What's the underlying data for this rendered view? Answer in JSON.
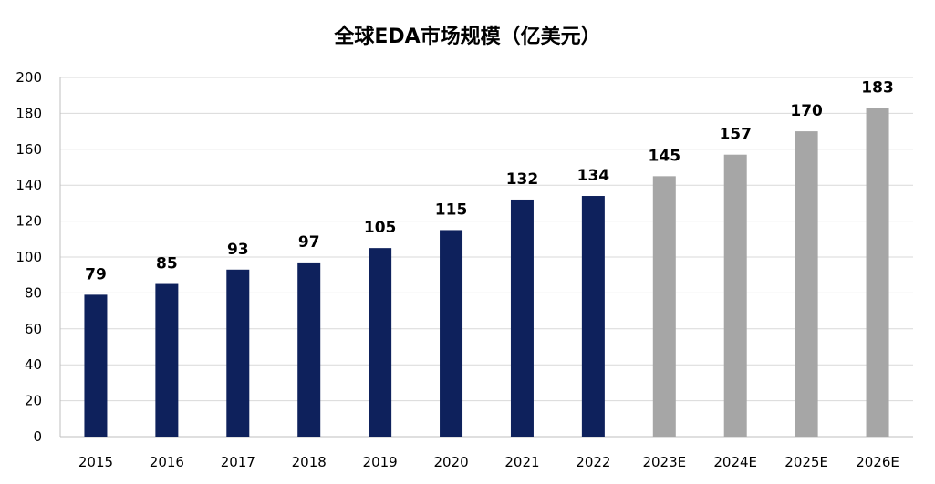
{
  "chart_data": {
    "type": "bar",
    "title": "全球EDA市场规模（亿美元）",
    "xlabel": "",
    "ylabel": "",
    "categories": [
      "2015",
      "2016",
      "2017",
      "2018",
      "2019",
      "2020",
      "2021",
      "2022",
      "2023E",
      "2024E",
      "2025E",
      "2026E"
    ],
    "values": [
      79,
      85,
      93,
      97,
      105,
      115,
      132,
      134,
      145,
      157,
      170,
      183
    ],
    "ylim": [
      0,
      200
    ],
    "yticks": [
      0,
      20,
      40,
      60,
      80,
      100,
      120,
      140,
      160,
      180,
      200
    ],
    "grid": true,
    "legend": "none",
    "colors": {
      "actual": "#0e215c",
      "forecast": "#a6a6a6",
      "forecast_from_index": 8
    }
  }
}
